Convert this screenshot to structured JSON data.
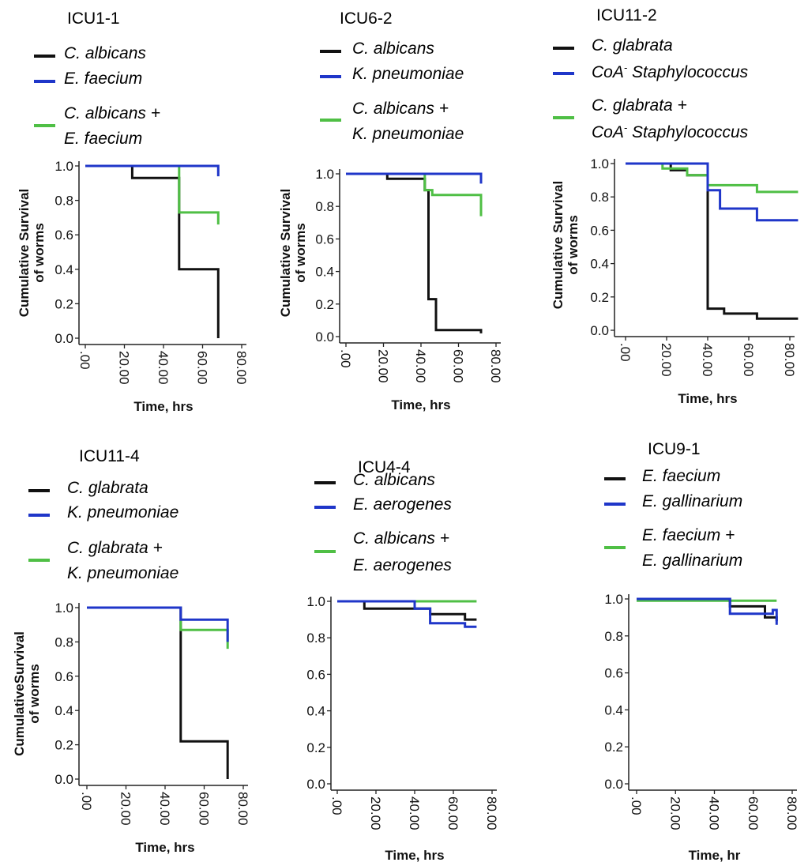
{
  "colors": {
    "black": "#111111",
    "blue": "#1f36c9",
    "green": "#4fbf45"
  },
  "chart_data": [
    {
      "type": "line",
      "title": "ICU1-1",
      "legend": [
        "C. albicans",
        "E. faecium",
        "C. albicans +",
        "E. faecium"
      ],
      "xlabel": "Time, hrs",
      "ylabel": [
        "Cumulative Survival",
        "of worms"
      ],
      "xlim": [
        0,
        80
      ],
      "ylim": [
        0,
        1
      ],
      "x_ticks": [
        ".00",
        "20.00",
        "40.00",
        "60.00",
        "80.00"
      ],
      "y_ticks": [
        "0.0",
        "0.2",
        "0.4",
        "0.6",
        "0.8",
        "1.0"
      ],
      "series": [
        {
          "color": "black",
          "x": [
            0,
            24,
            24,
            48,
            48,
            68,
            68
          ],
          "y": [
            1.0,
            1.0,
            0.93,
            0.93,
            0.4,
            0.4,
            0.0
          ]
        },
        {
          "color": "green",
          "x": [
            48,
            48,
            68,
            68
          ],
          "y": [
            1.0,
            0.73,
            0.73,
            0.66
          ]
        },
        {
          "color": "blue",
          "x": [
            0,
            68,
            68
          ],
          "y": [
            1.0,
            1.0,
            0.94
          ]
        }
      ]
    },
    {
      "type": "line",
      "title": "ICU6-2",
      "legend": [
        "C. albicans",
        "K. pneumoniae",
        "C. albicans +",
        "K. pneumoniae"
      ],
      "xlabel": "Time, hrs",
      "ylabel": [
        "Cumulative Survival",
        "of worms"
      ],
      "xlim": [
        0,
        80
      ],
      "ylim": [
        0,
        1
      ],
      "x_ticks": [
        ".00",
        "20.00",
        "40.00",
        "60.00",
        "80.00"
      ],
      "y_ticks": [
        "0.0",
        "0.2",
        "0.4",
        "0.6",
        "0.8",
        "1.0"
      ],
      "series": [
        {
          "color": "black",
          "x": [
            0,
            22,
            22,
            42,
            42,
            44,
            44,
            48,
            48,
            72,
            72
          ],
          "y": [
            1.0,
            1.0,
            0.97,
            0.97,
            0.9,
            0.9,
            0.23,
            0.23,
            0.04,
            0.04,
            0.02
          ]
        },
        {
          "color": "green",
          "x": [
            42,
            42,
            46,
            46,
            72,
            72
          ],
          "y": [
            1.0,
            0.9,
            0.9,
            0.87,
            0.87,
            0.74
          ]
        },
        {
          "color": "blue",
          "x": [
            0,
            72,
            72
          ],
          "y": [
            1.0,
            1.0,
            0.94
          ]
        }
      ]
    },
    {
      "type": "line",
      "title": "ICU11-2",
      "legend": [
        "C. glabrata",
        "CoA",
        "Staphylococcus",
        "C. glabrata +",
        "CoA",
        "Staphylococcus"
      ],
      "legend_sup": "-",
      "xlabel": "Time, hrs",
      "ylabel": [
        "Cumulative Survival",
        "of worms"
      ],
      "xlim": [
        0,
        80
      ],
      "ylim": [
        0,
        1
      ],
      "x_ticks": [
        ".00",
        "20.00",
        "40.00",
        "60.00",
        "80.00"
      ],
      "y_ticks": [
        "0.0",
        "0.2",
        "0.4",
        "0.6",
        "0.8",
        "1.0"
      ],
      "series": [
        {
          "color": "black",
          "x": [
            0,
            22,
            22,
            30,
            30,
            40,
            40,
            48,
            48,
            64,
            64,
            84
          ],
          "y": [
            1.0,
            1.0,
            0.96,
            0.96,
            0.93,
            0.93,
            0.13,
            0.13,
            0.1,
            0.1,
            0.07,
            0.07
          ]
        },
        {
          "color": "green",
          "x": [
            0,
            18,
            18,
            30,
            30,
            40,
            40,
            64,
            64,
            84
          ],
          "y": [
            1.0,
            1.0,
            0.97,
            0.97,
            0.93,
            0.93,
            0.87,
            0.87,
            0.83,
            0.83
          ]
        },
        {
          "color": "blue",
          "x": [
            0,
            40,
            40,
            46,
            46,
            64,
            64,
            84
          ],
          "y": [
            1.0,
            1.0,
            0.84,
            0.84,
            0.73,
            0.73,
            0.66,
            0.66
          ]
        }
      ]
    },
    {
      "type": "line",
      "title": "ICU11-4",
      "legend": [
        "C. glabrata",
        "K. pneumoniae",
        "C. glabrata +",
        "K. pneumoniae"
      ],
      "xlabel": "Time, hrs",
      "ylabel": [
        "CumulativeSurvival",
        "of worms"
      ],
      "xlim": [
        0,
        80
      ],
      "ylim": [
        0,
        1
      ],
      "x_ticks": [
        ".00",
        "20.00",
        "40.00",
        "60.00",
        "80.00"
      ],
      "y_ticks": [
        "0.0",
        "0.2",
        "0.4",
        "0.6",
        "0.8",
        "1.0"
      ],
      "series": [
        {
          "color": "black",
          "x": [
            0,
            48,
            48,
            72,
            72
          ],
          "y": [
            1.0,
            1.0,
            0.22,
            0.22,
            0.0
          ]
        },
        {
          "color": "green",
          "x": [
            48,
            48,
            72,
            72
          ],
          "y": [
            0.93,
            0.87,
            0.87,
            0.76
          ]
        },
        {
          "color": "blue",
          "x": [
            0,
            48,
            48,
            72,
            72
          ],
          "y": [
            1.0,
            1.0,
            0.93,
            0.93,
            0.8
          ]
        }
      ]
    },
    {
      "type": "line",
      "title": "ICU4-4",
      "legend": [
        "C. albicans",
        "E. aerogenes",
        "C. albicans +",
        "E. aerogenes"
      ],
      "xlabel": "Time, hrs",
      "ylabel": [],
      "xlim": [
        0,
        80
      ],
      "ylim": [
        0,
        1
      ],
      "x_ticks": [
        ".00",
        "20.00",
        "40.00",
        "60.00",
        "80.00"
      ],
      "y_ticks": [
        "0.0",
        "0.2",
        "0.4",
        "0.6",
        "0.8",
        "1.0"
      ],
      "series": [
        {
          "color": "green",
          "x": [
            0,
            72
          ],
          "y": [
            1.0,
            1.0
          ]
        },
        {
          "color": "black",
          "x": [
            0,
            14,
            14,
            48,
            48,
            66,
            66,
            72
          ],
          "y": [
            1.0,
            1.0,
            0.96,
            0.96,
            0.93,
            0.93,
            0.9,
            0.9
          ]
        },
        {
          "color": "blue",
          "x": [
            0,
            40,
            40,
            48,
            48,
            66,
            66,
            72
          ],
          "y": [
            1.0,
            1.0,
            0.96,
            0.96,
            0.88,
            0.88,
            0.86,
            0.86
          ]
        }
      ]
    },
    {
      "type": "line",
      "title": "ICU9-1",
      "legend": [
        "E. faecium",
        "E. gallinarium",
        "E. faecium +",
        "E. gallinarium"
      ],
      "xlabel": "Time, hr",
      "ylabel": [],
      "xlim": [
        0,
        80
      ],
      "ylim": [
        0,
        1
      ],
      "x_ticks": [
        ".00",
        "20.00",
        "40.00",
        "60.00",
        "80.00"
      ],
      "y_ticks": [
        "0.0",
        "0.2",
        "0.4",
        "0.6",
        "0.8",
        "1.0"
      ],
      "series": [
        {
          "color": "green",
          "x": [
            0,
            72
          ],
          "y": [
            0.99,
            0.99
          ]
        },
        {
          "color": "black",
          "x": [
            0,
            48,
            48,
            66,
            66,
            72,
            72
          ],
          "y": [
            1.0,
            1.0,
            0.96,
            0.96,
            0.9,
            0.9,
            0.88
          ]
        },
        {
          "color": "blue",
          "x": [
            0,
            48,
            48,
            70,
            70,
            72,
            72
          ],
          "y": [
            1.0,
            1.0,
            0.92,
            0.92,
            0.94,
            0.94,
            0.86
          ]
        }
      ]
    }
  ]
}
